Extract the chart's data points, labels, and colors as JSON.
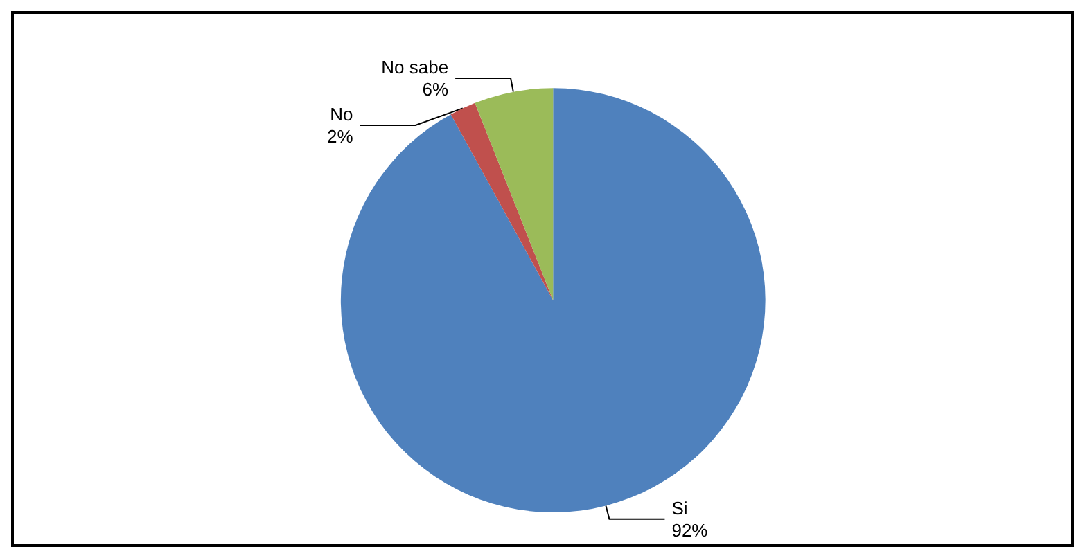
{
  "chart_data": {
    "type": "pie",
    "categories": [
      "Si",
      "No",
      "No sabe"
    ],
    "values": [
      92,
      2,
      6
    ],
    "value_labels": [
      "92%",
      "2%",
      "6%"
    ],
    "colors": [
      "#4f81bd",
      "#c0504d",
      "#9bbb59"
    ],
    "legend": false
  }
}
